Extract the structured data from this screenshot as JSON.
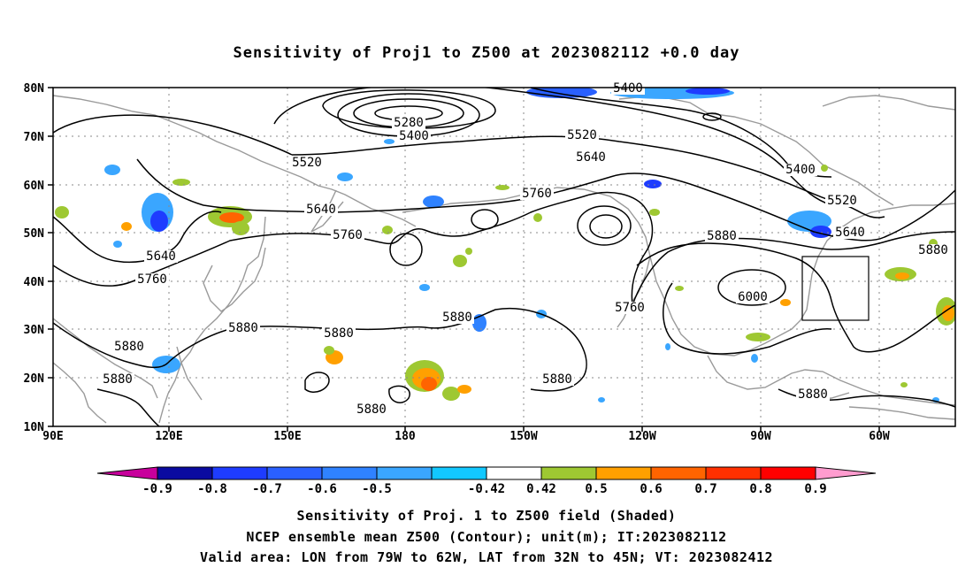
{
  "title": "Sensitivity of Proj1 to Z500 at 2023082112 +0.0 day",
  "map": {
    "lon_ticks": [
      "90E",
      "120E",
      "150E",
      "180",
      "150W",
      "120W",
      "90W",
      "60W"
    ],
    "lat_ticks": [
      "80N",
      "70N",
      "60N",
      "50N",
      "40N",
      "30N",
      "20N",
      "10N"
    ],
    "contour_labels": [
      "5400",
      "5280",
      "5400",
      "5520",
      "5640",
      "5520",
      "5400",
      "5520",
      "5640",
      "5760",
      "5640",
      "5760",
      "5880",
      "5640",
      "5760",
      "6000",
      "5760",
      "5880",
      "5880",
      "5880",
      "5880",
      "5880",
      "5880",
      "5880",
      "5880",
      "5880"
    ],
    "valid_box_label": ""
  },
  "colorbar": {
    "labels": [
      "-0.9",
      "-0.8",
      "-0.7",
      "-0.6",
      "-0.5",
      "-0.42",
      "0.42",
      "0.5",
      "0.6",
      "0.7",
      "0.8",
      "0.9"
    ],
    "colors": [
      "#c8009c",
      "#0a0aa0",
      "#1e3cff",
      "#2a60ff",
      "#2f82ff",
      "#3aa6ff",
      "#12c8ff",
      "#ffffff",
      "#9ec832",
      "#ffa000",
      "#ff6400",
      "#ff3000",
      "#ff0000",
      "#ff9ccf"
    ]
  },
  "footer": {
    "line1": "Sensitivity of Proj. 1 to Z500 field (Shaded)",
    "line2": "NCEP ensemble mean Z500 (Contour); unit(m); IT:2023082112",
    "line3": "Valid area: LON from 79W to 62W, LAT from 32N to 45N; VT: 2023082412"
  }
}
